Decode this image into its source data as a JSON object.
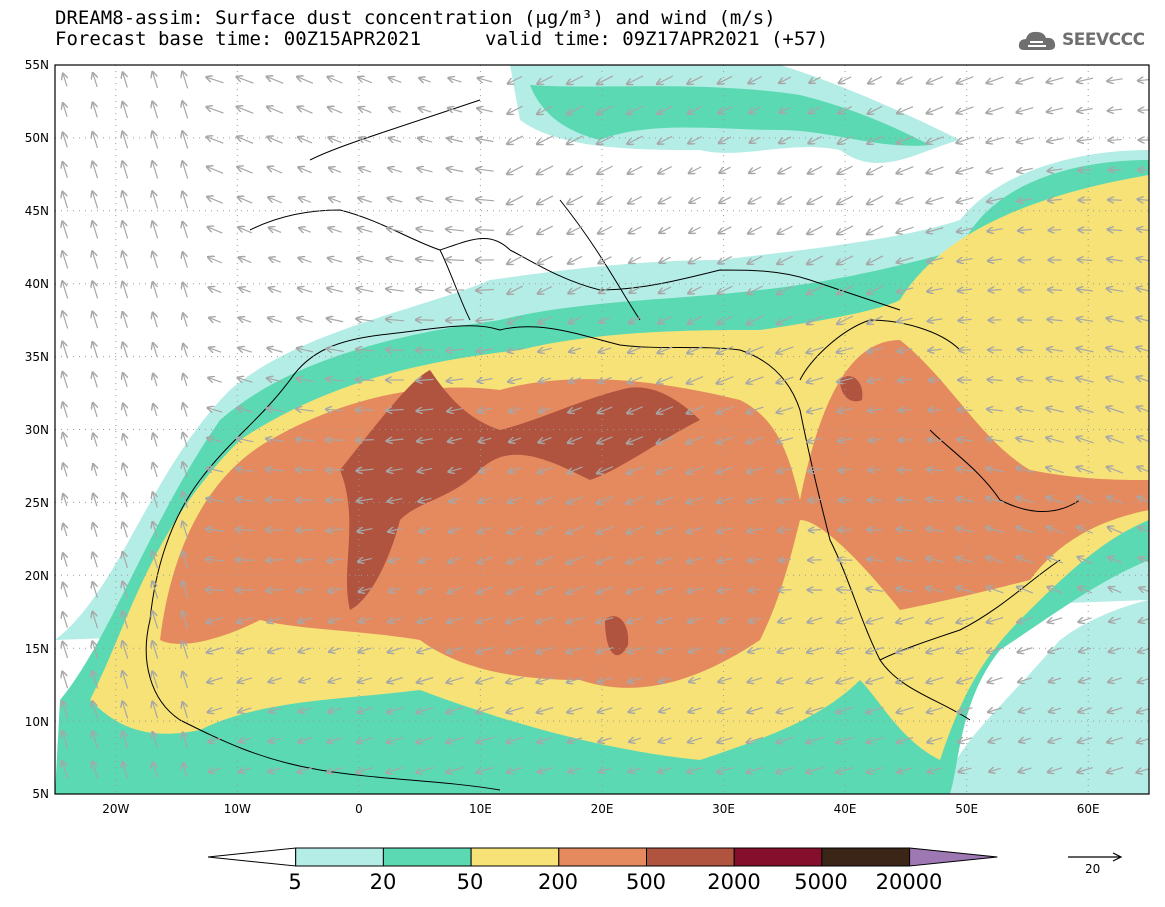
{
  "title": {
    "line1": "DREAM8-assim: Surface dust concentration (μg/m³) and wind (m/s)",
    "line2": "Forecast base time: 00Z15APR2021",
    "valid": "valid time: 09Z17APR2021 (+57)"
  },
  "logo": {
    "text": "SEEVCCC",
    "icon": "cloud-icon"
  },
  "map": {
    "region": "North Africa, Europe and Middle East",
    "lon_range": [
      -25,
      65
    ],
    "lat_range": [
      5,
      55
    ],
    "lat_ticks": [
      "55N",
      "50N",
      "45N",
      "40N",
      "35N",
      "30N",
      "25N",
      "20N",
      "15N",
      "10N",
      "5N"
    ],
    "lon_ticks": [
      "20W",
      "10W",
      "0",
      "10E",
      "20E",
      "30E",
      "40E",
      "50E",
      "60E"
    ]
  },
  "colorbar": {
    "levels": [
      "5",
      "20",
      "50",
      "200",
      "500",
      "2000",
      "5000",
      "20000"
    ],
    "colors": [
      "#ffffff",
      "#b4ede6",
      "#5bd9b2",
      "#f6e276",
      "#e58a5f",
      "#b0533f",
      "#840e2b",
      "#3a2517",
      "#9e78b3"
    ]
  },
  "wind_reference": {
    "value": "20"
  },
  "colors": {
    "arrow": "#a7a7a7",
    "coast": "#000000",
    "grid": "#9a9a9a"
  }
}
